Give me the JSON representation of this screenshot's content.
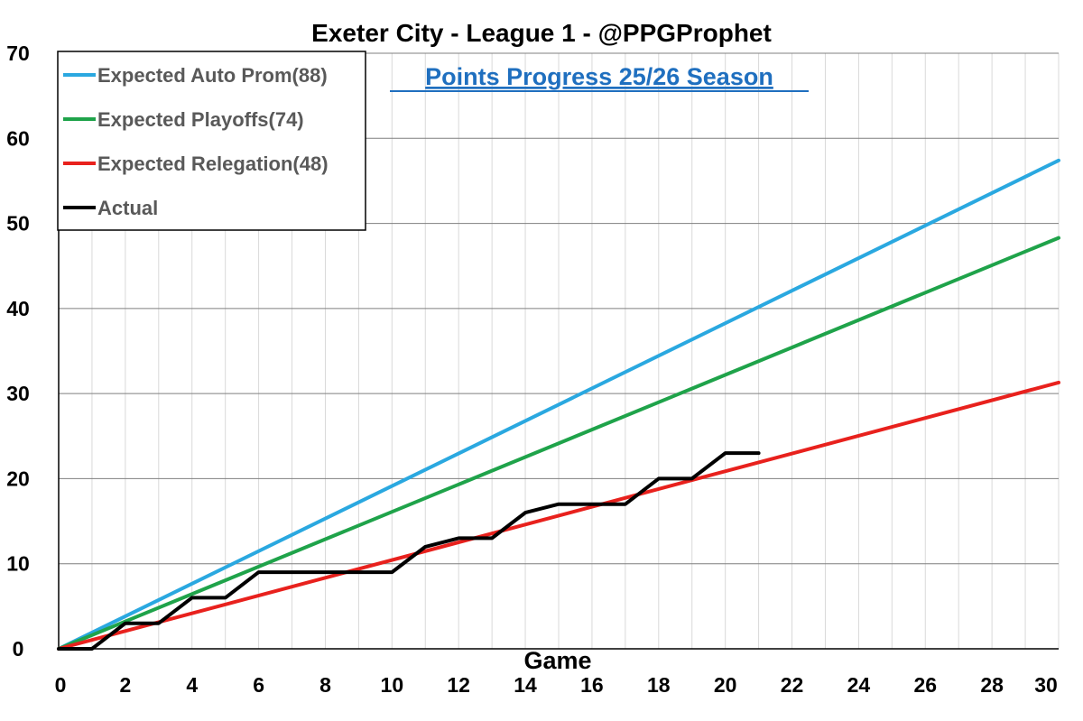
{
  "chart_data": {
    "type": "line",
    "title": "Exeter City - League 1 - @PPGProphet",
    "subtitle": "Points Progress 25/26 Season",
    "xlabel": "Game",
    "ylabel": "",
    "xlim": [
      0,
      30
    ],
    "ylim": [
      0,
      70
    ],
    "x_ticks": [
      0,
      2,
      4,
      6,
      8,
      10,
      12,
      14,
      16,
      18,
      20,
      22,
      24,
      26,
      28,
      30
    ],
    "y_ticks": [
      0,
      10,
      20,
      30,
      40,
      50,
      60,
      70
    ],
    "grid": true,
    "legend_position": "top-left",
    "series": [
      {
        "name": "Expected Auto Prom(88)",
        "color": "#2aa8e0",
        "x": [
          0,
          30
        ],
        "y": [
          0,
          57.4
        ]
      },
      {
        "name": "Expected Playoffs(74)",
        "color": "#1fa34a",
        "x": [
          0,
          30
        ],
        "y": [
          0,
          48.3
        ]
      },
      {
        "name": "Expected Relegation(48)",
        "color": "#e8211d",
        "x": [
          0,
          30
        ],
        "y": [
          0,
          31.3
        ]
      },
      {
        "name": "Actual",
        "color": "#000000",
        "x": [
          0,
          1,
          2,
          3,
          4,
          5,
          6,
          7,
          8,
          9,
          10,
          11,
          12,
          13,
          14,
          15,
          16,
          17,
          18,
          19,
          20,
          21
        ],
        "y": [
          0,
          0,
          3,
          3,
          6,
          6,
          9,
          9,
          9,
          9,
          9,
          12,
          13,
          13,
          16,
          17,
          17,
          17,
          20,
          20,
          23,
          23
        ]
      }
    ]
  }
}
